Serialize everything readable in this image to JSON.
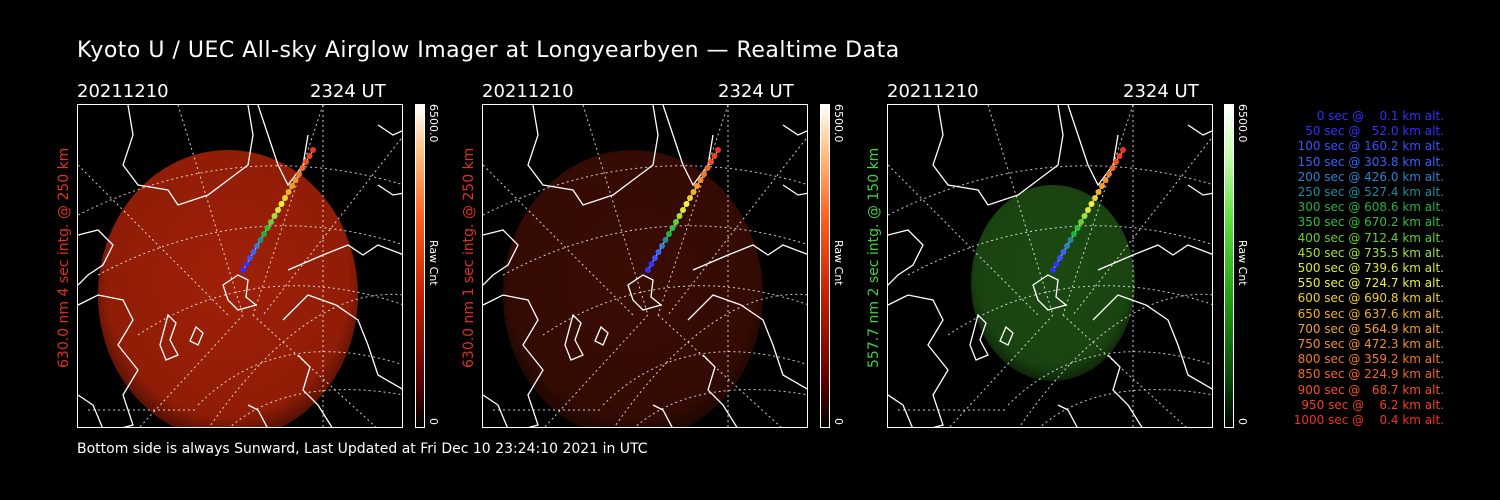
{
  "title": "Kyoto U / UEC All-sky Airglow Imager at Longyearbyen — Realtime Data",
  "footer": "Bottom side is always Sunward, Last Updated at Fri Dec 10 23:24:10 2021 in UTC",
  "panels": [
    {
      "date": "20211210",
      "time": "2324 UT",
      "ylabel": "630.0 nm 4 sec intg. @ 250 km",
      "ylabel_color": "#e0301e",
      "cbar_max": "6500.0",
      "cbar_min": "0",
      "cbar_unit": "Raw Cnt",
      "emission_color": "#a02008",
      "emission_level": 0.55
    },
    {
      "date": "20211210",
      "time": "2324 UT",
      "ylabel": "630.0 nm 1 sec intg. @ 250 km",
      "ylabel_color": "#e0301e",
      "cbar_max": "6500.0",
      "cbar_min": "0",
      "cbar_unit": "Raw Cnt",
      "emission_color": "#3a0c04",
      "emission_level": 0.2
    },
    {
      "date": "20211210",
      "time": "2324 UT",
      "ylabel": "557.7 nm 2 sec intg. @ 150 km",
      "ylabel_color": "#40d040",
      "cbar_max": "6500.0",
      "cbar_min": "0",
      "cbar_unit": "Raw Cnt",
      "emission_color": "#1c4a12",
      "emission_level": 0.3
    }
  ],
  "legend": [
    {
      "text": "0 sec @    0.1 km alt.",
      "color": "#3030ff"
    },
    {
      "text": "50 sec @   52.0 km alt.",
      "color": "#3030ff"
    },
    {
      "text": "100 sec @ 160.2 km alt.",
      "color": "#3a50ff"
    },
    {
      "text": "150 sec @ 303.8 km alt.",
      "color": "#3a60ff"
    },
    {
      "text": "200 sec @ 426.0 km alt.",
      "color": "#2f80d0"
    },
    {
      "text": "250 sec @ 527.4 km alt.",
      "color": "#208a9a"
    },
    {
      "text": "300 sec @ 608.6 km alt.",
      "color": "#20b040"
    },
    {
      "text": "350 sec @ 670.2 km alt.",
      "color": "#30c030"
    },
    {
      "text": "400 sec @ 712.4 km alt.",
      "color": "#60d030"
    },
    {
      "text": "450 sec @ 735.5 km alt.",
      "color": "#a0e040"
    },
    {
      "text": "500 sec @ 739.6 km alt.",
      "color": "#d8e840"
    },
    {
      "text": "550 sec @ 724.7 km alt.",
      "color": "#f0f040"
    },
    {
      "text": "600 sec @ 690.8 km alt.",
      "color": "#f0d030"
    },
    {
      "text": "650 sec @ 637.6 km alt.",
      "color": "#f0b030"
    },
    {
      "text": "700 sec @ 564.9 km alt.",
      "color": "#f0a030"
    },
    {
      "text": "750 sec @ 472.3 km alt.",
      "color": "#f09030"
    },
    {
      "text": "800 sec @ 359.2 km alt.",
      "color": "#f07828"
    },
    {
      "text": "850 sec @ 224.9 km alt.",
      "color": "#f06828"
    },
    {
      "text": "900 sec @   68.7 km alt.",
      "color": "#f05020"
    },
    {
      "text": "950 sec @    6.2 km alt.",
      "color": "#f04020"
    },
    {
      "text": "1000 sec @    0.4 km alt.",
      "color": "#f03020"
    }
  ]
}
